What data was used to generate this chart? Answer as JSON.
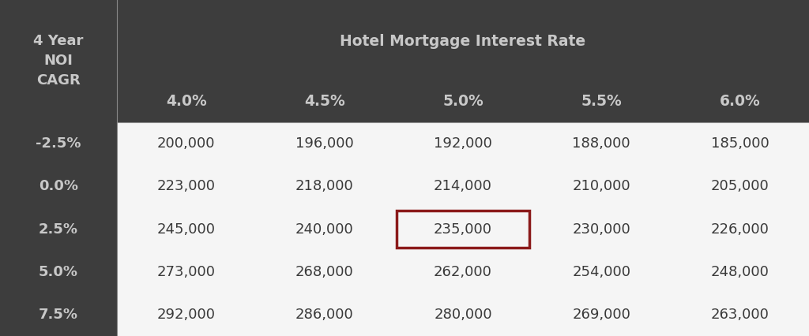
{
  "header_col_label": "4 Year\nNOI\nCAGR",
  "col_header_label": "Hotel Mortgage Interest Rate",
  "col_headers": [
    "4.0%",
    "4.5%",
    "5.0%",
    "5.5%",
    "6.0%"
  ],
  "row_headers": [
    "-2.5%",
    "0.0%",
    "2.5%",
    "5.0%",
    "7.5%"
  ],
  "table_data": [
    [
      200000,
      196000,
      192000,
      188000,
      185000
    ],
    [
      223000,
      218000,
      214000,
      210000,
      205000
    ],
    [
      245000,
      240000,
      235000,
      230000,
      226000
    ],
    [
      273000,
      268000,
      262000,
      254000,
      248000
    ],
    [
      292000,
      286000,
      280000,
      269000,
      263000
    ]
  ],
  "highlight_row": 2,
  "highlight_col": 2,
  "bg_dark": "#3d3d3d",
  "bg_light": "#f5f5f5",
  "text_dark": "#c8c8c8",
  "text_light": "#3a3a3a",
  "highlight_border_color": "#8b1a1a",
  "col_header_fontsize": 13.5,
  "cell_fontsize": 13,
  "row_header_fontsize": 13
}
